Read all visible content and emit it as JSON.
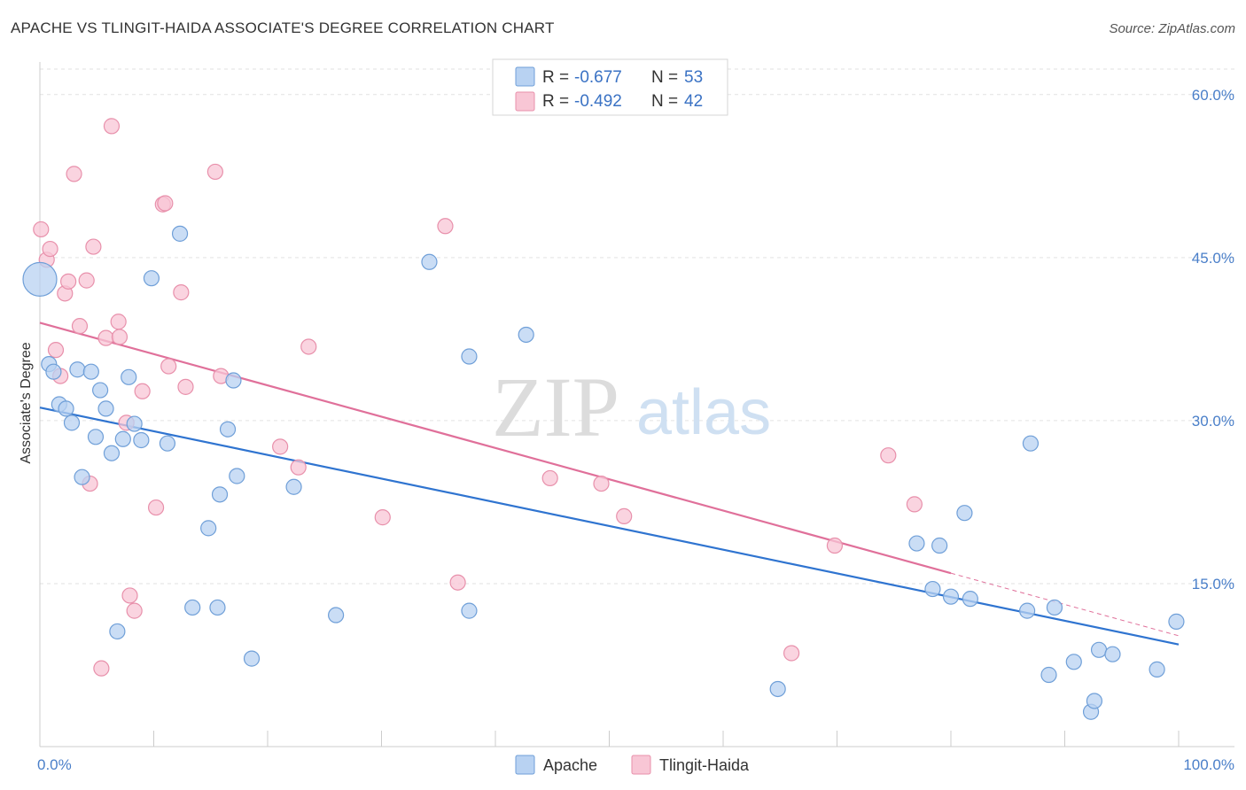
{
  "title": "APACHE VS TLINGIT-HAIDA ASSOCIATE'S DEGREE CORRELATION CHART",
  "source": "Source: ZipAtlas.com",
  "watermark": {
    "zip": "ZIP",
    "atlas": "atlas"
  },
  "colors": {
    "apache_fill": "#b8d2f2",
    "apache_stroke": "#6f9fd8",
    "apache_line": "#2f74d0",
    "tlingit_fill": "#f8c6d5",
    "tlingit_stroke": "#e890ab",
    "tlingit_line": "#e0709a",
    "grid": "#e2e2e2",
    "axis_label": "#4a7fc9"
  },
  "legend": {
    "rows": [
      {
        "r_label": "R =",
        "r_value": "-0.677",
        "n_label": "N =",
        "n_value": "53"
      },
      {
        "r_label": "R =",
        "r_value": "-0.492",
        "n_label": "N =",
        "n_value": "42"
      }
    ]
  },
  "chart_data": {
    "type": "scatter",
    "title": "APACHE VS TLINGIT-HAIDA ASSOCIATE'S DEGREE CORRELATION CHART",
    "xlabel": "",
    "ylabel": "Associate's Degree",
    "xlim": [
      0,
      100
    ],
    "ylim": [
      0,
      63
    ],
    "x_tick_labels": [
      "0.0%",
      "100.0%"
    ],
    "y_ticks": [
      15,
      30,
      45,
      60
    ],
    "y_tick_labels": [
      "15.0%",
      "30.0%",
      "45.0%",
      "60.0%"
    ],
    "grid": true,
    "legend_position": "top-center",
    "series": [
      {
        "name": "Apache",
        "r": -0.677,
        "n": 53,
        "trend": {
          "x": [
            0,
            100
          ],
          "y": [
            31.2,
            9.4
          ],
          "solid_until": 100
        },
        "points": [
          {
            "x": 0.0,
            "y": 43.0,
            "big": true
          },
          {
            "x": 0.8,
            "y": 35.2
          },
          {
            "x": 1.2,
            "y": 34.5
          },
          {
            "x": 1.7,
            "y": 31.5
          },
          {
            "x": 2.3,
            "y": 31.1
          },
          {
            "x": 2.8,
            "y": 29.8
          },
          {
            "x": 3.3,
            "y": 34.7
          },
          {
            "x": 3.7,
            "y": 24.8
          },
          {
            "x": 4.5,
            "y": 34.5
          },
          {
            "x": 4.9,
            "y": 28.5
          },
          {
            "x": 5.3,
            "y": 32.8
          },
          {
            "x": 5.8,
            "y": 31.1
          },
          {
            "x": 6.3,
            "y": 27.0
          },
          {
            "x": 6.8,
            "y": 10.6
          },
          {
            "x": 7.3,
            "y": 28.3
          },
          {
            "x": 7.8,
            "y": 34.0
          },
          {
            "x": 8.3,
            "y": 29.7
          },
          {
            "x": 8.9,
            "y": 28.2
          },
          {
            "x": 9.8,
            "y": 43.1
          },
          {
            "x": 11.2,
            "y": 27.9
          },
          {
            "x": 12.3,
            "y": 47.2
          },
          {
            "x": 13.4,
            "y": 12.8
          },
          {
            "x": 14.8,
            "y": 20.1
          },
          {
            "x": 15.8,
            "y": 23.2
          },
          {
            "x": 15.6,
            "y": 12.8
          },
          {
            "x": 16.5,
            "y": 29.2
          },
          {
            "x": 17.0,
            "y": 33.7
          },
          {
            "x": 17.3,
            "y": 24.9
          },
          {
            "x": 18.6,
            "y": 8.1
          },
          {
            "x": 22.3,
            "y": 23.9
          },
          {
            "x": 26.0,
            "y": 12.1
          },
          {
            "x": 34.2,
            "y": 44.6
          },
          {
            "x": 37.7,
            "y": 12.5
          },
          {
            "x": 37.7,
            "y": 35.9
          },
          {
            "x": 42.7,
            "y": 37.9
          },
          {
            "x": 64.8,
            "y": 5.3
          },
          {
            "x": 77.0,
            "y": 18.7
          },
          {
            "x": 78.4,
            "y": 14.5
          },
          {
            "x": 79.0,
            "y": 18.5
          },
          {
            "x": 80.0,
            "y": 13.8
          },
          {
            "x": 81.7,
            "y": 13.6
          },
          {
            "x": 81.2,
            "y": 21.5
          },
          {
            "x": 86.7,
            "y": 12.5
          },
          {
            "x": 87.0,
            "y": 27.9
          },
          {
            "x": 88.6,
            "y": 6.6
          },
          {
            "x": 89.1,
            "y": 12.8
          },
          {
            "x": 90.8,
            "y": 7.8
          },
          {
            "x": 92.3,
            "y": 3.2
          },
          {
            "x": 92.6,
            "y": 4.2
          },
          {
            "x": 93.0,
            "y": 8.9
          },
          {
            "x": 94.2,
            "y": 8.5
          },
          {
            "x": 98.1,
            "y": 7.1
          },
          {
            "x": 99.8,
            "y": 11.5
          }
        ]
      },
      {
        "name": "Tlingit-Haida",
        "r": -0.492,
        "n": 42,
        "trend": {
          "x": [
            0,
            100
          ],
          "y": [
            39.0,
            10.2
          ],
          "solid_until": 80
        },
        "points": [
          {
            "x": 0.1,
            "y": 47.6
          },
          {
            "x": 0.6,
            "y": 44.8
          },
          {
            "x": 0.9,
            "y": 45.8
          },
          {
            "x": 1.4,
            "y": 36.5
          },
          {
            "x": 1.8,
            "y": 34.1
          },
          {
            "x": 2.2,
            "y": 41.7
          },
          {
            "x": 2.5,
            "y": 42.8
          },
          {
            "x": 3.0,
            "y": 52.7
          },
          {
            "x": 3.5,
            "y": 38.7
          },
          {
            "x": 4.1,
            "y": 42.9
          },
          {
            "x": 4.4,
            "y": 24.2
          },
          {
            "x": 4.7,
            "y": 46.0
          },
          {
            "x": 5.4,
            "y": 7.2
          },
          {
            "x": 5.8,
            "y": 37.6
          },
          {
            "x": 6.3,
            "y": 57.1
          },
          {
            "x": 6.9,
            "y": 39.1
          },
          {
            "x": 7.0,
            "y": 37.7
          },
          {
            "x": 7.6,
            "y": 29.8
          },
          {
            "x": 7.9,
            "y": 13.9
          },
          {
            "x": 8.3,
            "y": 12.5
          },
          {
            "x": 9.0,
            "y": 32.7
          },
          {
            "x": 10.2,
            "y": 22.0
          },
          {
            "x": 10.8,
            "y": 49.9
          },
          {
            "x": 11.0,
            "y": 50.0
          },
          {
            "x": 11.3,
            "y": 35.0
          },
          {
            "x": 12.4,
            "y": 41.8
          },
          {
            "x": 12.8,
            "y": 33.1
          },
          {
            "x": 15.4,
            "y": 52.9
          },
          {
            "x": 15.9,
            "y": 34.1
          },
          {
            "x": 21.1,
            "y": 27.6
          },
          {
            "x": 22.7,
            "y": 25.7
          },
          {
            "x": 23.6,
            "y": 36.8
          },
          {
            "x": 30.1,
            "y": 21.1
          },
          {
            "x": 35.6,
            "y": 47.9
          },
          {
            "x": 36.7,
            "y": 15.1
          },
          {
            "x": 44.8,
            "y": 24.7
          },
          {
            "x": 49.3,
            "y": 24.2
          },
          {
            "x": 51.3,
            "y": 21.2
          },
          {
            "x": 66.0,
            "y": 8.6
          },
          {
            "x": 69.8,
            "y": 18.5
          },
          {
            "x": 74.5,
            "y": 26.8
          },
          {
            "x": 76.8,
            "y": 22.3
          }
        ]
      }
    ]
  }
}
